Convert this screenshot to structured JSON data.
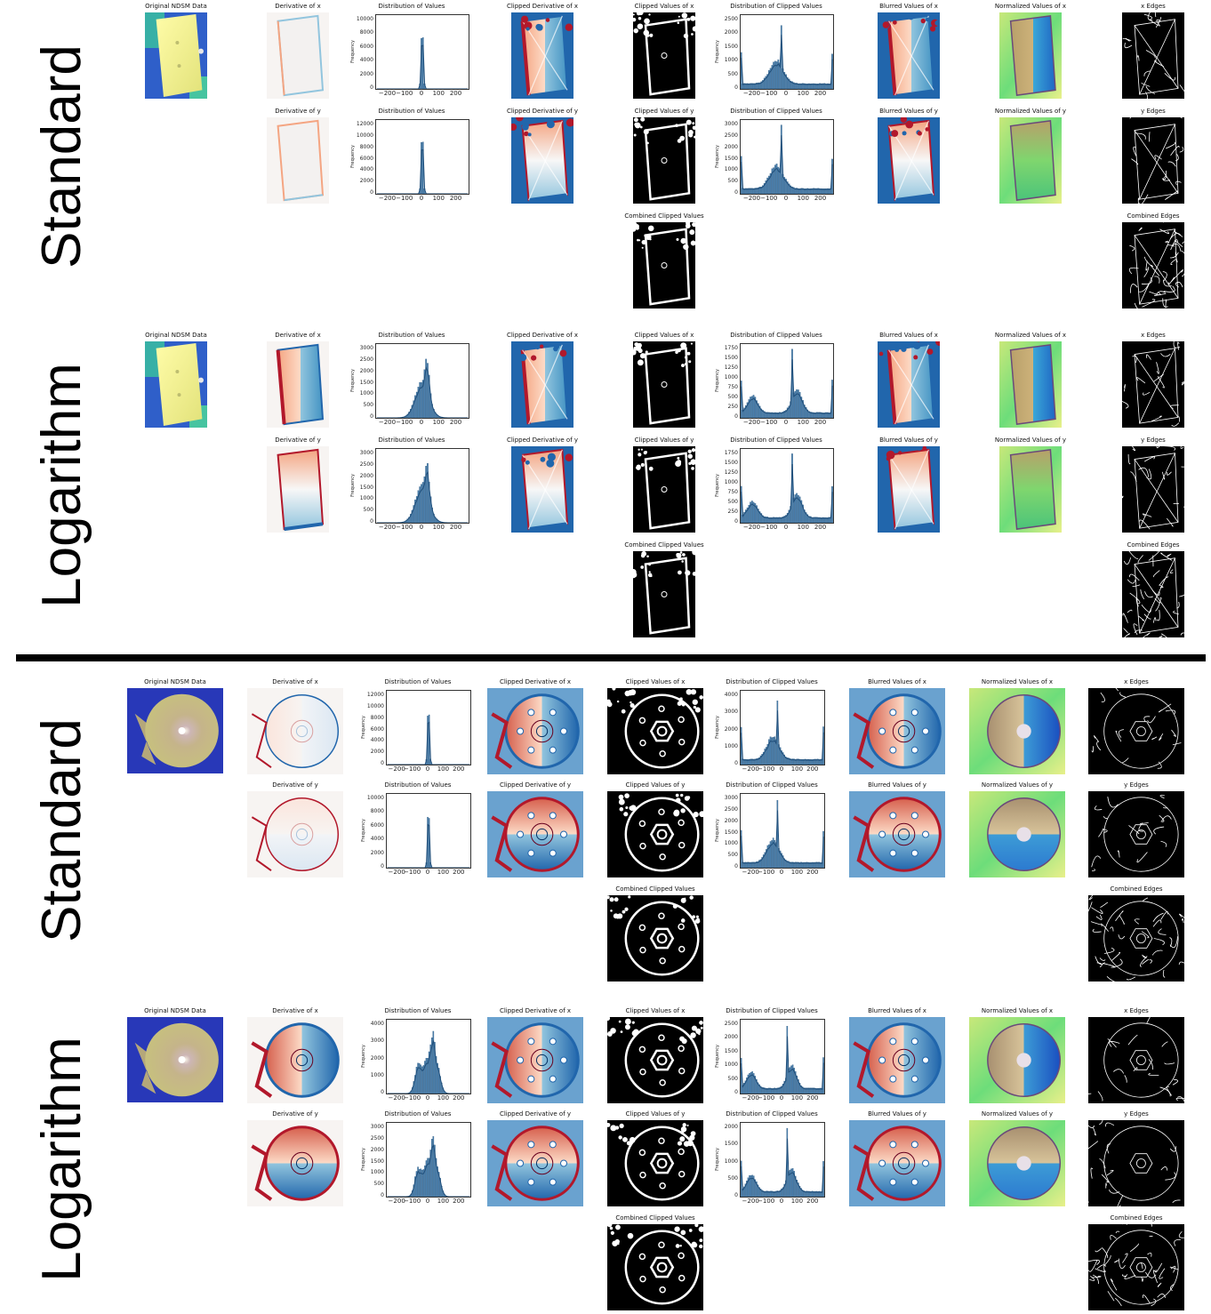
{
  "sections": [
    {
      "label": "Standard",
      "shape": "rect",
      "mode": "standard"
    },
    {
      "label": "Logarithm",
      "shape": "rect",
      "mode": "log"
    },
    {
      "label": "Standard",
      "shape": "circle",
      "mode": "standard"
    },
    {
      "label": "Logarithm",
      "shape": "circle",
      "mode": "log"
    }
  ],
  "titles": {
    "original": "Original NDSM Data",
    "deriv_x": "Derivative of x",
    "deriv_y": "Derivative of y",
    "dist": "Distribution of Values",
    "clipped_deriv_x": "Clipped Derivative of x",
    "clipped_deriv_y": "Clipped Derivative of y",
    "clipped_vals_x": "Clipped Values  of x",
    "clipped_vals_y": "Clipped Values  of y",
    "combined_clipped": "Combined Clipped Values",
    "dist_clipped": "Distribution of Clipped Values",
    "blurred_x": "Blurred Values of x",
    "blurred_y": "Blurred Values of y",
    "normalized_x": "Normalized Values of x",
    "normalized_y": "Normalized Values of y",
    "edges_x": "x Edges",
    "edges_y": "y Edges",
    "combined_edges": "Combined Edges"
  },
  "axis": {
    "ylabel": "Frequency",
    "xticks": [
      "−200",
      "−100",
      "0",
      "100",
      "200"
    ]
  },
  "histograms": {
    "sec0_dist_x": {
      "yticks": [
        "0",
        "2000",
        "4000",
        "6000",
        "8000",
        "10000"
      ]
    },
    "sec0_dist_y": {
      "yticks": [
        "0",
        "2000",
        "4000",
        "6000",
        "8000",
        "10000",
        "12000"
      ]
    },
    "sec0_clip_x": {
      "yticks": [
        "0",
        "500",
        "1000",
        "1500",
        "2000",
        "2500"
      ]
    },
    "sec0_clip_y": {
      "yticks": [
        "0",
        "500",
        "1000",
        "1500",
        "2000",
        "2500",
        "3000"
      ]
    },
    "sec1_dist_x": {
      "yticks": [
        "0",
        "500",
        "1000",
        "1500",
        "2000",
        "2500",
        "3000"
      ]
    },
    "sec1_dist_y": {
      "yticks": [
        "0",
        "500",
        "1000",
        "1500",
        "2000",
        "2500",
        "3000"
      ]
    },
    "sec1_clip_x": {
      "yticks": [
        "0",
        "250",
        "500",
        "750",
        "1000",
        "1250",
        "1500",
        "1750"
      ]
    },
    "sec1_clip_y": {
      "yticks": [
        "0",
        "250",
        "500",
        "750",
        "1000",
        "1250",
        "1500",
        "1750"
      ]
    },
    "sec2_dist_x": {
      "yticks": [
        "0",
        "2000",
        "4000",
        "6000",
        "8000",
        "10000",
        "12000"
      ]
    },
    "sec2_dist_y": {
      "yticks": [
        "0",
        "2000",
        "4000",
        "6000",
        "8000",
        "10000"
      ]
    },
    "sec2_clip_x": {
      "yticks": [
        "0",
        "1000",
        "2000",
        "3000",
        "4000"
      ]
    },
    "sec2_clip_y": {
      "yticks": [
        "0",
        "500",
        "1000",
        "1500",
        "2000",
        "2500",
        "3000"
      ]
    },
    "sec3_dist_x": {
      "yticks": [
        "0",
        "1000",
        "2000",
        "3000",
        "4000"
      ]
    },
    "sec3_dist_y": {
      "yticks": [
        "0",
        "500",
        "1000",
        "1500",
        "2000",
        "2500",
        "3000"
      ]
    },
    "sec3_clip_x": {
      "yticks": [
        "0",
        "500",
        "1000",
        "1500",
        "2000",
        "2500"
      ]
    },
    "sec3_clip_y": {
      "yticks": [
        "0",
        "500",
        "1000",
        "1500",
        "2000"
      ]
    }
  },
  "colors": {
    "ndsm_low": "#2b3cc4",
    "ndsm_high": "#f1ef96",
    "deriv_pos": "#b2182b",
    "deriv_neg": "#2166ac",
    "hist_bar": "#4a7fad",
    "kde": "#1f4e7a",
    "edge_bg": "#000000",
    "edge_fg": "#ffffff"
  }
}
